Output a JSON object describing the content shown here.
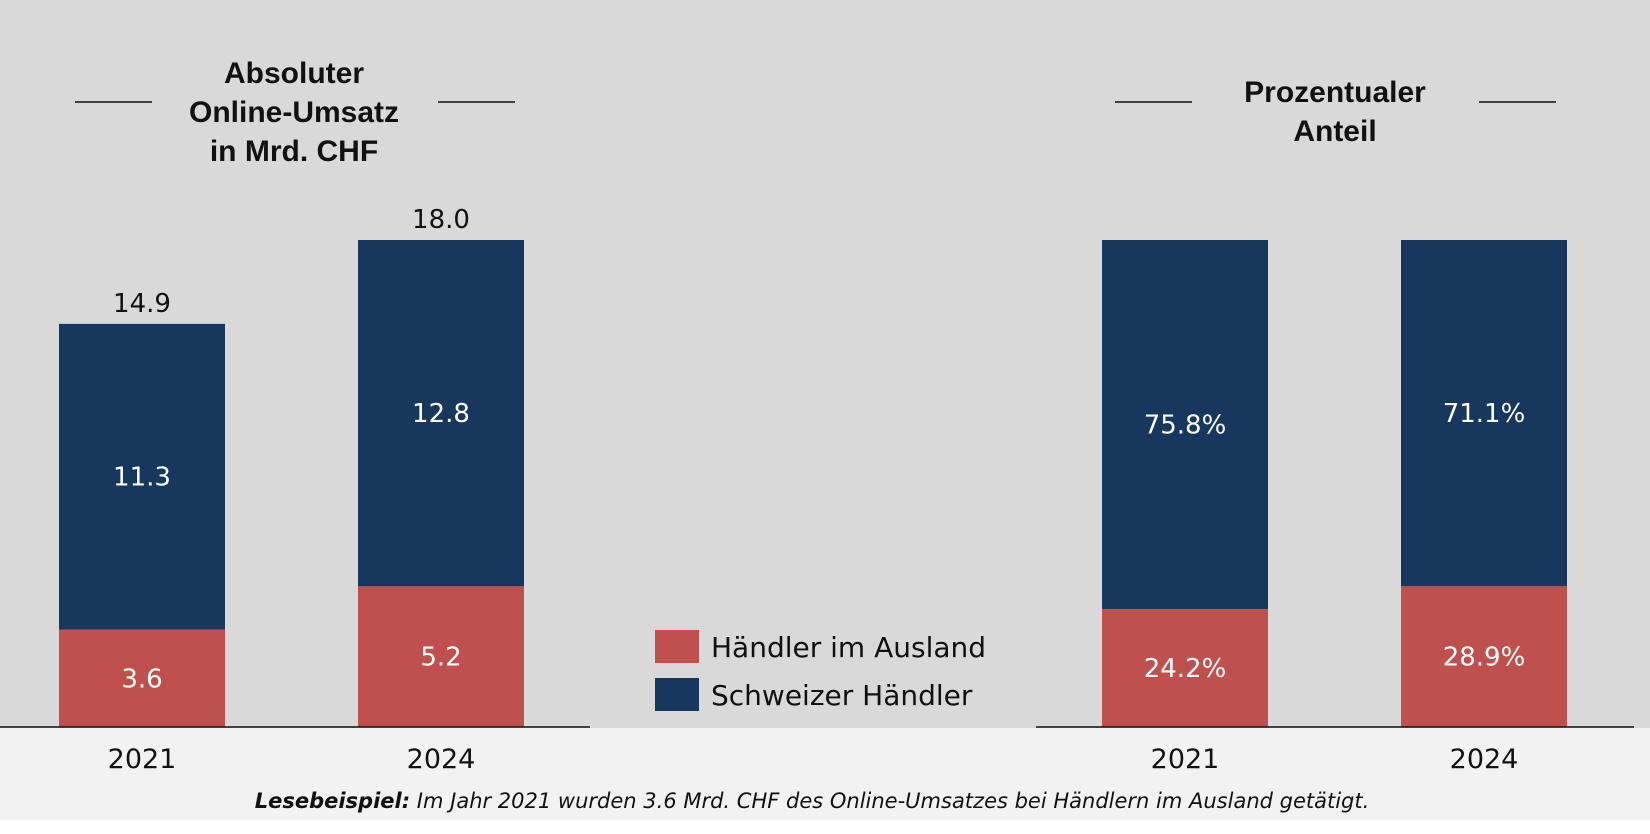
{
  "colors": {
    "background": "#d9d9d9",
    "footer_background": "#f2f2f2",
    "foreign": "#c0504d",
    "swiss": "#17375e"
  },
  "legend": [
    {
      "label": "Händler im Ausland",
      "color": "#c0504d"
    },
    {
      "label": "Schweizer Händler",
      "color": "#17375e"
    }
  ],
  "footnote": {
    "bold": "Lesebeispiel:",
    "text": " Im Jahr 2021 wurden 3.6 Mrd. CHF des Online-Umsatzes bei Händlern im Ausland getätigt."
  },
  "chart_data": [
    {
      "type": "bar",
      "stacked": true,
      "title_lines": [
        "Absoluter",
        "Online-Umsatz",
        "in Mrd. CHF"
      ],
      "categories": [
        "2021",
        "2024"
      ],
      "series": [
        {
          "name": "Händler im Ausland",
          "values": [
            3.6,
            5.2
          ],
          "labels": [
            "3.6",
            "5.2"
          ]
        },
        {
          "name": "Schweizer Händler",
          "values": [
            11.3,
            12.8
          ],
          "labels": [
            "11.3",
            "12.8"
          ]
        }
      ],
      "totals": [
        "14.9",
        "18.0"
      ],
      "ylim": [
        0,
        18.0
      ],
      "grid": false
    },
    {
      "type": "bar",
      "stacked": true,
      "title_lines": [
        "Prozentualer",
        "Anteil"
      ],
      "categories": [
        "2021",
        "2024"
      ],
      "series": [
        {
          "name": "Händler im Ausland",
          "values": [
            24.2,
            28.9
          ],
          "labels": [
            "24.2%",
            "28.9%"
          ]
        },
        {
          "name": "Schweizer Händler",
          "values": [
            75.8,
            71.1
          ],
          "labels": [
            "75.8%",
            "71.1%"
          ]
        }
      ],
      "totals": [],
      "ylim": [
        0,
        100
      ],
      "grid": false
    }
  ]
}
